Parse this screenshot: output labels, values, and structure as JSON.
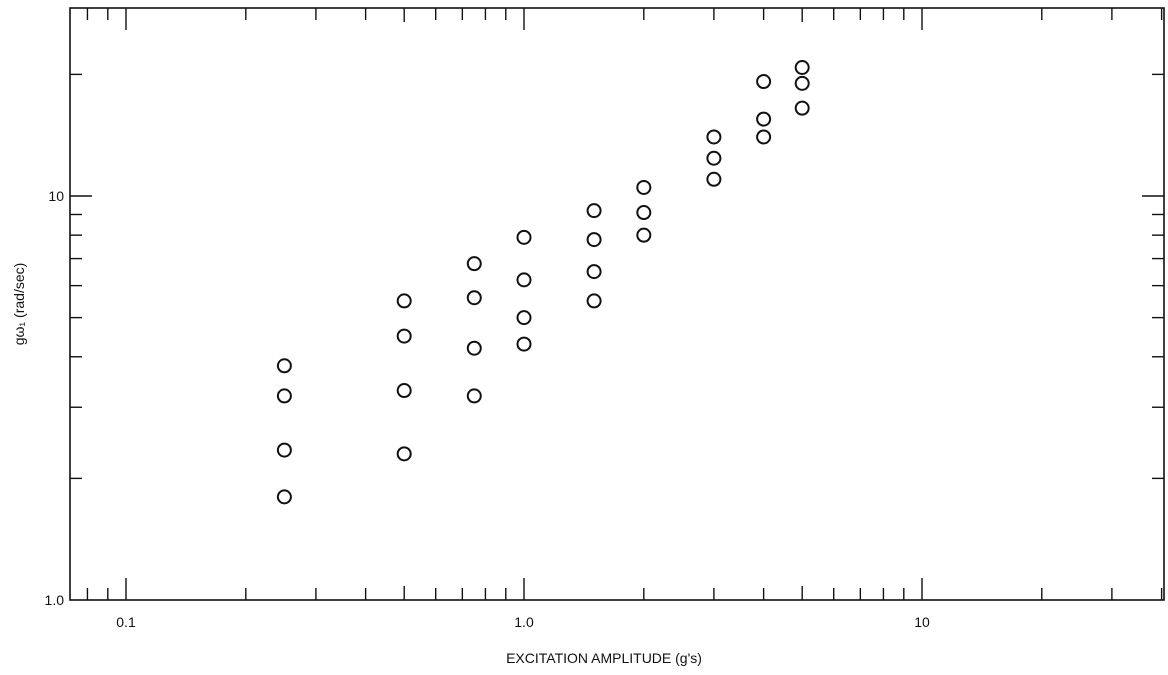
{
  "chart_data": {
    "type": "scatter",
    "xlabel": "EXCITATION AMPLITUDE (g's)",
    "ylabel": "gω₁ (rad/sec)",
    "xscale": "log",
    "yscale": "log",
    "xlim": [
      0.075,
      35
    ],
    "ylim": [
      1.0,
      25
    ],
    "x_tick_labels": [
      {
        "value": 0.1,
        "label": "0.1"
      },
      {
        "value": 1.0,
        "label": "1.0"
      },
      {
        "value": 10,
        "label": "10"
      }
    ],
    "y_tick_labels": [
      {
        "value": 1.0,
        "label": "1.0"
      },
      {
        "value": 10,
        "label": "10"
      }
    ],
    "grid": false,
    "marker": "open-circle",
    "points": [
      {
        "x": 0.25,
        "y": 3.8
      },
      {
        "x": 0.25,
        "y": 3.2
      },
      {
        "x": 0.25,
        "y": 2.35
      },
      {
        "x": 0.25,
        "y": 1.8
      },
      {
        "x": 0.5,
        "y": 5.5
      },
      {
        "x": 0.5,
        "y": 4.5
      },
      {
        "x": 0.5,
        "y": 3.3
      },
      {
        "x": 0.5,
        "y": 2.3
      },
      {
        "x": 0.75,
        "y": 6.8
      },
      {
        "x": 0.75,
        "y": 5.6
      },
      {
        "x": 0.75,
        "y": 4.2
      },
      {
        "x": 0.75,
        "y": 3.2
      },
      {
        "x": 1.0,
        "y": 7.9
      },
      {
        "x": 1.0,
        "y": 6.2
      },
      {
        "x": 1.0,
        "y": 5.0
      },
      {
        "x": 1.0,
        "y": 4.3
      },
      {
        "x": 1.5,
        "y": 9.2
      },
      {
        "x": 1.5,
        "y": 7.8
      },
      {
        "x": 1.5,
        "y": 6.5
      },
      {
        "x": 1.5,
        "y": 5.5
      },
      {
        "x": 2.0,
        "y": 10.5
      },
      {
        "x": 2.0,
        "y": 9.1
      },
      {
        "x": 2.0,
        "y": 8.0
      },
      {
        "x": 3.0,
        "y": 14.0
      },
      {
        "x": 3.0,
        "y": 12.4
      },
      {
        "x": 3.0,
        "y": 11.0
      },
      {
        "x": 4.0,
        "y": 19.2
      },
      {
        "x": 4.0,
        "y": 15.5
      },
      {
        "x": 4.0,
        "y": 14.0
      },
      {
        "x": 5.0,
        "y": 20.8
      },
      {
        "x": 5.0,
        "y": 19.0
      },
      {
        "x": 5.0,
        "y": 16.5
      }
    ]
  }
}
